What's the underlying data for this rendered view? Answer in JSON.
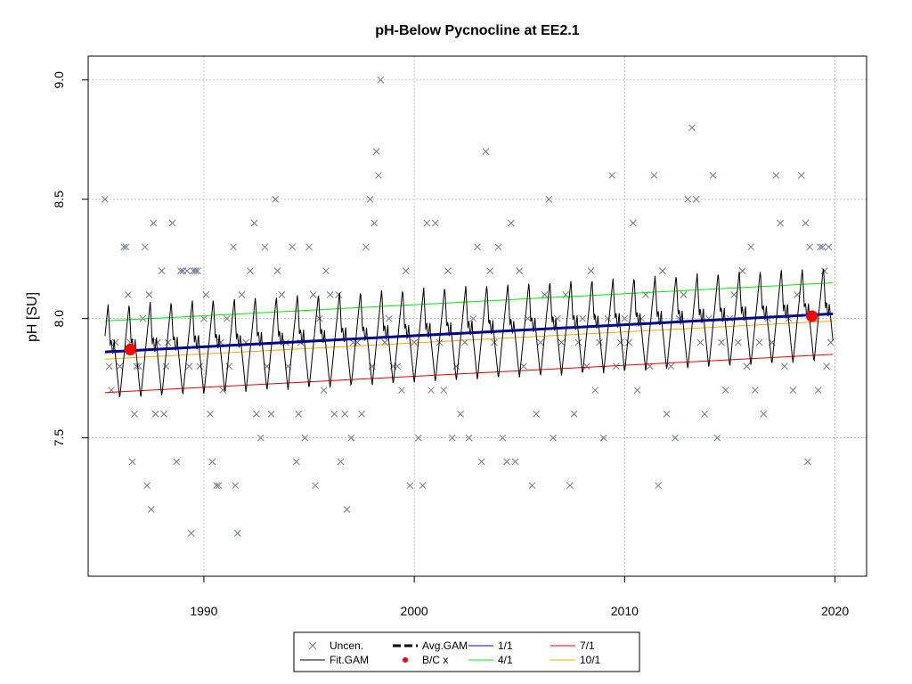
{
  "chart_data": {
    "type": "scatter",
    "title": "pH-Below Pycnocline at EE2.1",
    "ylabel": "pH [SU]",
    "xlabel": "",
    "xlim": [
      1984.5,
      2021.5
    ],
    "ylim": [
      6.92,
      9.1
    ],
    "x_ticks": [
      1990,
      2000,
      2010,
      2020
    ],
    "x_tick_labels": [
      "1990",
      "2000",
      "2010",
      "2020"
    ],
    "y_ticks": [
      7.5,
      8.0,
      8.5,
      9.0
    ],
    "y_tick_labels": [
      "7.5",
      "8.0",
      "8.5",
      "9.0"
    ],
    "grid": true,
    "legend_position": "bottom",
    "colors": {
      "uncensored": "#6e7b8b",
      "fit_gam": "#000000",
      "avg_gam": "#00008b",
      "bc": "#ff0000",
      "line_1_1": "#0000ff",
      "line_4_1": "#00ee00",
      "line_7_1": "#ee0000",
      "line_10_1": "#ffa500",
      "grid": "#c8c8c8"
    },
    "legend": [
      {
        "label": "Uncen.",
        "symbol": "x",
        "color": "#6e7b8b"
      },
      {
        "label": "Avg.GAM",
        "symbol": "thick-dash",
        "color": "#000000"
      },
      {
        "label": "1/1",
        "symbol": "line",
        "color": "#0000ff"
      },
      {
        "label": "7/1",
        "symbol": "line",
        "color": "#ee0000"
      },
      {
        "label": "Fit.GAM",
        "symbol": "line",
        "color": "#000000"
      },
      {
        "label": "B/C x",
        "symbol": "diamond",
        "color": "#ff0000"
      },
      {
        "label": "4/1",
        "symbol": "line",
        "color": "#00ee00"
      },
      {
        "label": "10/1",
        "symbol": "line",
        "color": "#ffa500"
      }
    ],
    "series": [
      {
        "name": "Uncen.",
        "type": "scatter",
        "points": [
          [
            1985.3,
            8.5
          ],
          [
            1985.5,
            7.8
          ],
          [
            1985.6,
            7.7
          ],
          [
            1985.8,
            7.9
          ],
          [
            1986.0,
            7.8
          ],
          [
            1986.2,
            8.3
          ],
          [
            1986.3,
            8.3
          ],
          [
            1986.4,
            8.1
          ],
          [
            1986.5,
            7.9
          ],
          [
            1986.6,
            7.4
          ],
          [
            1986.7,
            7.6
          ],
          [
            1986.8,
            7.8
          ],
          [
            1986.9,
            7.8
          ],
          [
            1987.1,
            8.0
          ],
          [
            1987.2,
            8.3
          ],
          [
            1987.3,
            7.3
          ],
          [
            1987.4,
            8.1
          ],
          [
            1987.5,
            7.2
          ],
          [
            1987.6,
            8.4
          ],
          [
            1987.7,
            7.6
          ],
          [
            1987.8,
            7.9
          ],
          [
            1988.0,
            8.2
          ],
          [
            1988.1,
            7.6
          ],
          [
            1988.2,
            7.8
          ],
          [
            1988.3,
            7.9
          ],
          [
            1988.5,
            8.4
          ],
          [
            1988.7,
            7.4
          ],
          [
            1988.9,
            8.2
          ],
          [
            1989.0,
            8.2
          ],
          [
            1989.2,
            8.2
          ],
          [
            1989.3,
            7.8
          ],
          [
            1989.4,
            7.1
          ],
          [
            1989.5,
            8.2
          ],
          [
            1989.6,
            8.2
          ],
          [
            1989.7,
            8.2
          ],
          [
            1989.8,
            7.8
          ],
          [
            1990.0,
            8.0
          ],
          [
            1990.1,
            8.1
          ],
          [
            1990.3,
            7.6
          ],
          [
            1990.4,
            7.4
          ],
          [
            1990.6,
            7.3
          ],
          [
            1990.7,
            7.3
          ],
          [
            1990.8,
            7.9
          ],
          [
            1990.9,
            7.7
          ],
          [
            1991.1,
            8.0
          ],
          [
            1991.2,
            7.8
          ],
          [
            1991.4,
            8.3
          ],
          [
            1991.5,
            7.3
          ],
          [
            1991.6,
            7.1
          ],
          [
            1991.8,
            8.1
          ],
          [
            1992.0,
            7.9
          ],
          [
            1992.2,
            8.2
          ],
          [
            1992.4,
            8.4
          ],
          [
            1992.5,
            7.6
          ],
          [
            1992.7,
            7.5
          ],
          [
            1992.9,
            8.3
          ],
          [
            1993.0,
            7.8
          ],
          [
            1993.2,
            7.6
          ],
          [
            1993.4,
            8.5
          ],
          [
            1993.5,
            8.2
          ],
          [
            1993.7,
            8.1
          ],
          [
            1993.9,
            7.9
          ],
          [
            1994.0,
            7.8
          ],
          [
            1994.2,
            8.3
          ],
          [
            1994.4,
            7.4
          ],
          [
            1994.5,
            7.6
          ],
          [
            1994.6,
            7.9
          ],
          [
            1994.8,
            7.5
          ],
          [
            1995.0,
            8.3
          ],
          [
            1995.2,
            8.1
          ],
          [
            1995.3,
            7.3
          ],
          [
            1995.5,
            8.0
          ],
          [
            1995.7,
            7.7
          ],
          [
            1995.8,
            8.2
          ],
          [
            1996.0,
            8.1
          ],
          [
            1996.2,
            7.6
          ],
          [
            1996.4,
            8.1
          ],
          [
            1996.5,
            7.4
          ],
          [
            1996.7,
            7.6
          ],
          [
            1996.8,
            7.2
          ],
          [
            1997.0,
            7.5
          ],
          [
            1997.1,
            7.9
          ],
          [
            1997.3,
            7.9
          ],
          [
            1997.5,
            7.6
          ],
          [
            1997.7,
            8.3
          ],
          [
            1997.9,
            8.5
          ],
          [
            1998.0,
            7.8
          ],
          [
            1998.1,
            8.4
          ],
          [
            1998.2,
            8.7
          ],
          [
            1998.3,
            8.6
          ],
          [
            1998.4,
            9.0
          ],
          [
            1998.6,
            7.9
          ],
          [
            1998.8,
            8.0
          ],
          [
            1999.0,
            7.8
          ],
          [
            1999.2,
            7.8
          ],
          [
            1999.4,
            7.7
          ],
          [
            1999.6,
            8.2
          ],
          [
            1999.8,
            7.3
          ],
          [
            2000.0,
            7.9
          ],
          [
            2000.2,
            7.5
          ],
          [
            2000.4,
            7.3
          ],
          [
            2000.6,
            8.4
          ],
          [
            2000.8,
            7.7
          ],
          [
            2001.0,
            8.4
          ],
          [
            2001.2,
            7.9
          ],
          [
            2001.4,
            7.7
          ],
          [
            2001.6,
            8.2
          ],
          [
            2001.8,
            7.5
          ],
          [
            2002.0,
            7.8
          ],
          [
            2002.2,
            7.6
          ],
          [
            2002.4,
            7.9
          ],
          [
            2002.6,
            7.5
          ],
          [
            2002.8,
            8.0
          ],
          [
            2003.0,
            8.3
          ],
          [
            2003.2,
            7.4
          ],
          [
            2003.4,
            8.7
          ],
          [
            2003.6,
            8.2
          ],
          [
            2003.8,
            7.9
          ],
          [
            2004.0,
            8.3
          ],
          [
            2004.2,
            7.5
          ],
          [
            2004.4,
            7.4
          ],
          [
            2004.6,
            8.4
          ],
          [
            2004.8,
            7.4
          ],
          [
            2005.0,
            8.2
          ],
          [
            2005.2,
            7.8
          ],
          [
            2005.4,
            8.0
          ],
          [
            2005.6,
            7.3
          ],
          [
            2005.8,
            7.6
          ],
          [
            2006.0,
            7.9
          ],
          [
            2006.2,
            8.1
          ],
          [
            2006.4,
            8.5
          ],
          [
            2006.6,
            7.5
          ],
          [
            2006.8,
            8.0
          ],
          [
            2007.0,
            7.9
          ],
          [
            2007.2,
            8.1
          ],
          [
            2007.4,
            7.3
          ],
          [
            2007.6,
            7.6
          ],
          [
            2007.8,
            7.9
          ],
          [
            2008.0,
            8.0
          ],
          [
            2008.2,
            7.8
          ],
          [
            2008.4,
            8.2
          ],
          [
            2008.6,
            7.7
          ],
          [
            2008.8,
            7.9
          ],
          [
            2009.0,
            7.5
          ],
          [
            2009.2,
            8.0
          ],
          [
            2009.4,
            8.6
          ],
          [
            2009.6,
            7.8
          ],
          [
            2009.8,
            7.9
          ],
          [
            2010.0,
            8.0
          ],
          [
            2010.2,
            7.9
          ],
          [
            2010.4,
            8.4
          ],
          [
            2010.6,
            7.7
          ],
          [
            2010.8,
            8.0
          ],
          [
            2011.0,
            8.1
          ],
          [
            2011.2,
            7.8
          ],
          [
            2011.4,
            8.6
          ],
          [
            2011.6,
            7.3
          ],
          [
            2011.8,
            8.2
          ],
          [
            2012.0,
            7.6
          ],
          [
            2012.2,
            7.8
          ],
          [
            2012.4,
            7.5
          ],
          [
            2012.6,
            8.0
          ],
          [
            2012.8,
            8.1
          ],
          [
            2013.0,
            8.5
          ],
          [
            2013.2,
            8.8
          ],
          [
            2013.4,
            8.5
          ],
          [
            2013.6,
            7.9
          ],
          [
            2013.8,
            7.6
          ],
          [
            2014.0,
            8.0
          ],
          [
            2014.2,
            8.6
          ],
          [
            2014.4,
            7.5
          ],
          [
            2014.6,
            7.9
          ],
          [
            2014.8,
            7.7
          ],
          [
            2015.0,
            8.0
          ],
          [
            2015.2,
            8.1
          ],
          [
            2015.4,
            7.9
          ],
          [
            2015.6,
            8.2
          ],
          [
            2015.8,
            7.8
          ],
          [
            2016.0,
            8.3
          ],
          [
            2016.2,
            7.7
          ],
          [
            2016.4,
            7.9
          ],
          [
            2016.6,
            7.6
          ],
          [
            2016.8,
            8.0
          ],
          [
            2017.0,
            7.9
          ],
          [
            2017.2,
            8.6
          ],
          [
            2017.4,
            8.4
          ],
          [
            2017.6,
            7.8
          ],
          [
            2017.8,
            8.0
          ],
          [
            2018.0,
            7.7
          ],
          [
            2018.2,
            8.1
          ],
          [
            2018.4,
            8.6
          ],
          [
            2018.6,
            8.4
          ],
          [
            2018.7,
            7.4
          ],
          [
            2018.8,
            8.3
          ],
          [
            2019.0,
            8.0
          ],
          [
            2019.2,
            7.7
          ],
          [
            2019.3,
            8.3
          ],
          [
            2019.4,
            8.3
          ],
          [
            2019.5,
            8.2
          ],
          [
            2019.6,
            7.8
          ],
          [
            2019.7,
            8.3
          ],
          [
            2019.8,
            7.9
          ]
        ]
      },
      {
        "name": "Fit.GAM",
        "type": "seasonal-line",
        "start": 1985.3,
        "end": 2019.9,
        "base_start": 7.86,
        "base_end": 8.02,
        "peak_offset": 0.2,
        "trough_offset": -0.2
      },
      {
        "name": "Avg.GAM",
        "type": "line",
        "x": [
          1985.3,
          2019.9
        ],
        "y": [
          7.86,
          8.02
        ]
      },
      {
        "name": "1/1",
        "type": "line",
        "x": [
          1985.3,
          2019.9
        ],
        "y": [
          7.86,
          8.02
        ]
      },
      {
        "name": "4/1",
        "type": "line",
        "x": [
          1985.3,
          2019.9
        ],
        "y": [
          7.99,
          8.15
        ]
      },
      {
        "name": "7/1",
        "type": "line",
        "x": [
          1985.3,
          2019.9
        ],
        "y": [
          7.69,
          7.85
        ]
      },
      {
        "name": "10/1",
        "type": "line",
        "x": [
          1985.3,
          2019.9
        ],
        "y": [
          7.83,
          7.99
        ]
      },
      {
        "name": "B/C x",
        "type": "points",
        "points": [
          [
            1986.5,
            7.87
          ],
          [
            2018.9,
            8.01
          ]
        ]
      }
    ]
  }
}
